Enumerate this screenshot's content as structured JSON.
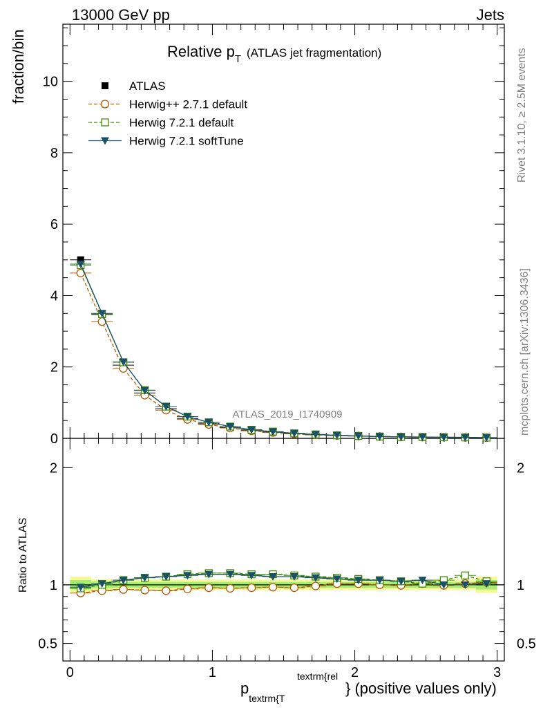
{
  "header": {
    "left": "13000 GeV pp",
    "right": "Jets"
  },
  "side_labels": {
    "rivet": "Rivet 3.1.10, ≥ 2.5M events",
    "mcplots": "mcplots.cern.ch [arXiv:1306.3436]"
  },
  "watermark": "ATLAS_2019_I1740909",
  "colors": {
    "atlas": "#000000",
    "herwigpp": "#b35900",
    "herwig721": "#3f8f00",
    "softtune": "#1b5263",
    "band_inner": "#a6ee70",
    "band_outer": "#f4fa9c"
  },
  "chart_data": [
    {
      "type": "line",
      "panel": "main",
      "title_main": "Relative p",
      "title_sub": "T",
      "title_extra": "(ATLAS jet fragmentation)",
      "ylabel": "fraction/bin",
      "xlim": [
        -0.05,
        3.05
      ],
      "ylim": [
        0,
        11.6
      ],
      "yticks": [
        0,
        2,
        4,
        6,
        8,
        10
      ],
      "ytick_labels": [
        "0",
        "2",
        "4",
        "6",
        "8",
        "10"
      ],
      "x": [
        0.075,
        0.225,
        0.375,
        0.525,
        0.675,
        0.825,
        0.975,
        1.125,
        1.275,
        1.425,
        1.575,
        1.725,
        1.875,
        2.025,
        2.175,
        2.325,
        2.475,
        2.625,
        2.775,
        2.925
      ],
      "series": [
        {
          "name": "ATLAS",
          "style": "data",
          "values": [
            5.0,
            3.47,
            2.05,
            1.27,
            0.83,
            0.56,
            0.41,
            0.3,
            0.22,
            0.17,
            0.13,
            0.1,
            0.08,
            0.065,
            0.05,
            0.04,
            0.035,
            0.03,
            0.025,
            0.02
          ]
        },
        {
          "name": "Herwig++ 2.7.1 default",
          "style": "circle",
          "values": [
            4.63,
            3.27,
            1.96,
            1.21,
            0.79,
            0.53,
            0.39,
            0.29,
            0.21,
            0.165,
            0.125,
            0.098,
            0.08,
            0.065,
            0.05,
            0.04,
            0.035,
            0.03,
            0.025,
            0.02
          ]
        },
        {
          "name": "Herwig 7.2.1 default",
          "style": "square",
          "values": [
            4.85,
            3.48,
            2.13,
            1.35,
            0.89,
            0.61,
            0.45,
            0.33,
            0.24,
            0.19,
            0.14,
            0.11,
            0.085,
            0.068,
            0.052,
            0.041,
            0.036,
            0.031,
            0.027,
            0.021
          ]
        },
        {
          "name": "Herwig 7.2.1 softTune",
          "style": "triangle",
          "values": [
            4.88,
            3.5,
            2.14,
            1.34,
            0.89,
            0.61,
            0.45,
            0.33,
            0.24,
            0.185,
            0.14,
            0.108,
            0.084,
            0.067,
            0.051,
            0.041,
            0.036,
            0.03,
            0.025,
            0.02
          ]
        }
      ]
    },
    {
      "type": "line",
      "panel": "ratio",
      "ylabel": "Ratio to ATLAS",
      "xlabel_main": "p",
      "xlabel_sub": "textrm{T",
      "xlabel_sup": "textrm{rel",
      "xlabel_tail": "} (positive values only)",
      "xlim": [
        -0.05,
        3.05
      ],
      "ylim": [
        0.35,
        2.25
      ],
      "xticks": [
        0,
        1,
        2,
        3
      ],
      "xtick_labels": [
        "0",
        "1",
        "2",
        "3"
      ],
      "yticks": [
        0.5,
        1,
        2
      ],
      "ytick_labels": [
        "0.5",
        "1",
        "2"
      ],
      "x": [
        0.075,
        0.225,
        0.375,
        0.525,
        0.675,
        0.825,
        0.975,
        1.125,
        1.275,
        1.425,
        1.575,
        1.725,
        1.875,
        2.025,
        2.175,
        2.325,
        2.475,
        2.625,
        2.775,
        2.925
      ],
      "band_inner": [
        0.04,
        0.03,
        0.025,
        0.025,
        0.025,
        0.025,
        0.025,
        0.025,
        0.025,
        0.025,
        0.025,
        0.025,
        0.025,
        0.025,
        0.025,
        0.025,
        0.025,
        0.025,
        0.025,
        0.04
      ],
      "band_outer": [
        0.07,
        0.05,
        0.045,
        0.045,
        0.045,
        0.045,
        0.045,
        0.045,
        0.045,
        0.045,
        0.045,
        0.045,
        0.045,
        0.045,
        0.045,
        0.045,
        0.045,
        0.045,
        0.045,
        0.07
      ],
      "series": [
        {
          "name": "Herwig++ 2.7.1 default",
          "style": "circle",
          "values": [
            0.93,
            0.95,
            0.96,
            0.955,
            0.95,
            0.965,
            0.975,
            0.97,
            0.975,
            0.98,
            0.975,
            0.99,
            1.01,
            1.01,
            1.0,
            0.995,
            1.01,
            0.995,
            1.01,
            1.02
          ]
        },
        {
          "name": "Herwig 7.2.1 default",
          "style": "square",
          "values": [
            0.97,
            1.0,
            1.04,
            1.06,
            1.07,
            1.09,
            1.1,
            1.1,
            1.09,
            1.09,
            1.08,
            1.07,
            1.06,
            1.05,
            1.04,
            1.03,
            1.01,
            1.04,
            1.08,
            1.03
          ]
        },
        {
          "name": "Herwig 7.2.1 softTune",
          "style": "triangle",
          "values": [
            0.98,
            1.01,
            1.04,
            1.06,
            1.07,
            1.08,
            1.09,
            1.09,
            1.08,
            1.07,
            1.07,
            1.06,
            1.05,
            1.04,
            1.04,
            1.03,
            1.04,
            1.0,
            1.0,
            1.01
          ]
        }
      ]
    }
  ]
}
